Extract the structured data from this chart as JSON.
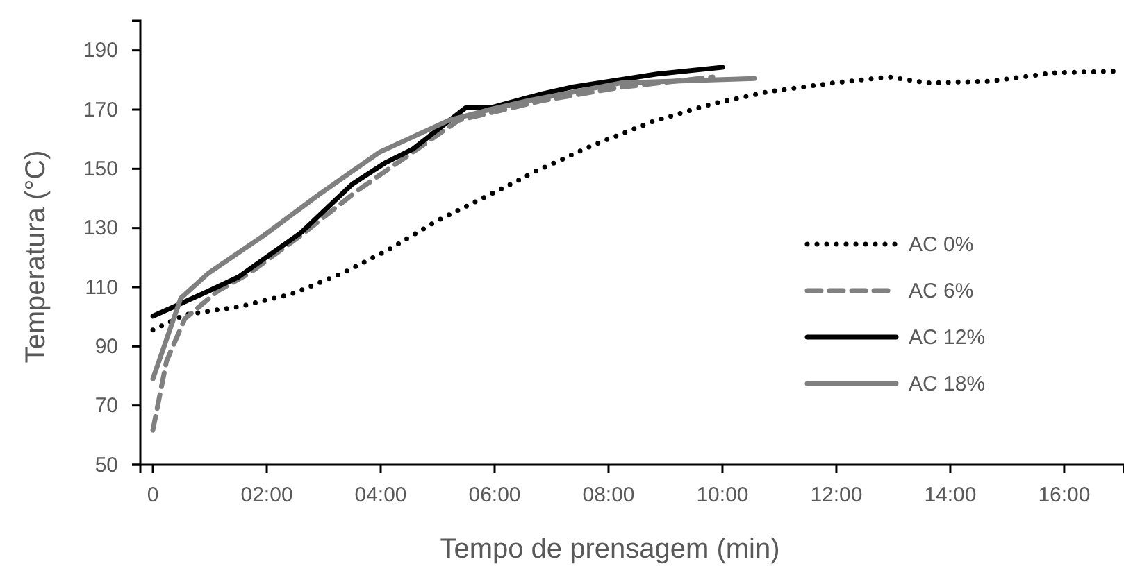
{
  "chart_data": {
    "type": "line",
    "xlabel": "Tempo de prensagem (min)",
    "ylabel": "Temperatura (°C)",
    "xlim": [
      -0.22,
      17.05
    ],
    "ylim": [
      50,
      200
    ],
    "xticks": [
      {
        "value": 0,
        "label": "0"
      },
      {
        "value": 2,
        "label": "02:00"
      },
      {
        "value": 4,
        "label": "04:00"
      },
      {
        "value": 6,
        "label": "06:00"
      },
      {
        "value": 8,
        "label": "08:00"
      },
      {
        "value": 10,
        "label": "10:00"
      },
      {
        "value": 12,
        "label": "12:00"
      },
      {
        "value": 14,
        "label": "14:00"
      },
      {
        "value": 16,
        "label": "16:00"
      }
    ],
    "yticks": [
      50,
      70,
      90,
      110,
      130,
      150,
      170,
      190
    ],
    "grid": false,
    "legend": "right",
    "marker": "none",
    "series": [
      {
        "name": "AC 0%",
        "color": "#000000",
        "line_style": "dotted",
        "x": [
          0,
          0.56,
          1.54,
          2.44,
          3.34,
          4.15,
          4.95,
          5.78,
          6.41,
          6.66,
          7.73,
          8.78,
          9.83,
          10.8,
          11.95,
          12.93,
          13.6,
          14.7,
          15.8,
          16.9
        ],
        "values": [
          95.5,
          100.7,
          103.5,
          107.7,
          114.8,
          122.8,
          132,
          140,
          146,
          148.6,
          158,
          166,
          172,
          176,
          179,
          181,
          179,
          179.6,
          182.4,
          183
        ]
      },
      {
        "name": "AC 6%",
        "color": "#808080",
        "line_style": "dashed",
        "x": [
          0,
          0.24,
          0.56,
          1.14,
          1.7,
          2.6,
          3.58,
          4.46,
          5.37,
          6.83,
          8.2,
          9.83
        ],
        "values": [
          61.7,
          85,
          99.3,
          108.7,
          114.8,
          127.5,
          142.5,
          154.2,
          166.4,
          173,
          177.5,
          181
        ]
      },
      {
        "name": "AC 12%",
        "color": "#000000",
        "line_style": "solid",
        "x": [
          0,
          0.98,
          1.5,
          2.6,
          3.5,
          4.07,
          4.56,
          5.49,
          5.93,
          6.83,
          7.39,
          8.85,
          10
        ],
        "values": [
          100.2,
          108.7,
          113.4,
          128.4,
          144.8,
          151.9,
          156.6,
          170.6,
          170.6,
          175.3,
          177.7,
          182,
          184.3
        ]
      },
      {
        "name": "AC 18%",
        "color": "#808080",
        "line_style": "solid",
        "x": [
          0,
          0.49,
          0.98,
          1.95,
          2.93,
          3.98,
          5.2,
          5.85,
          6.59,
          8.22,
          10.56
        ],
        "values": [
          79,
          106.3,
          114.8,
          127.5,
          141.5,
          155.6,
          166.4,
          169.7,
          173,
          179,
          180.5
        ]
      }
    ]
  }
}
